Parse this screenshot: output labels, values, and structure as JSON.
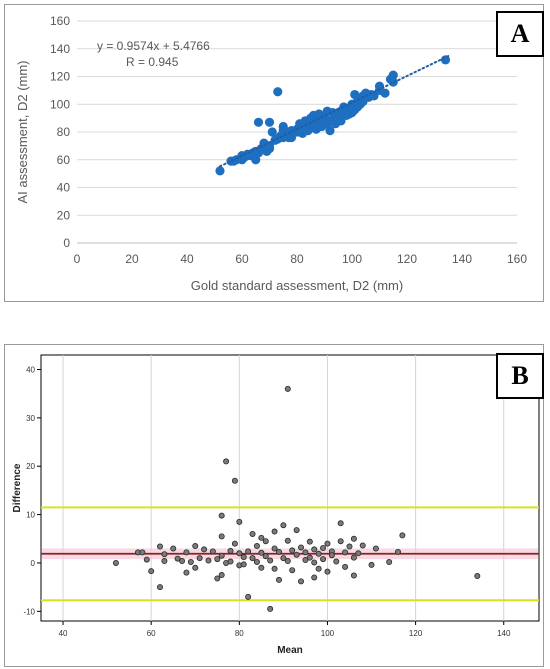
{
  "chart_data": [
    {
      "type": "scatter",
      "panel_label": "A",
      "xlabel": "Gold standard assessment, D2 (mm)",
      "ylabel": "AI assessment, D2 (mm)",
      "xlim": [
        0,
        160
      ],
      "ylim": [
        0,
        160
      ],
      "xticks": [
        "0",
        "20",
        "40",
        "60",
        "80",
        "100",
        "120",
        "140",
        "160"
      ],
      "yticks": [
        "0",
        "20",
        "40",
        "60",
        "80",
        "100",
        "120",
        "140",
        "160"
      ],
      "grid": "horizontal",
      "annotation": {
        "equation": "y = 0.9574x + 5.4766",
        "r": "R = 0.945"
      },
      "trendline": {
        "slope": 0.9574,
        "intercept": 5.4766,
        "x_range": [
          52,
          135
        ]
      },
      "colors": {
        "points": "#1f6fc0",
        "trendline": "#1f5fa8"
      },
      "points": [
        [
          52,
          52
        ],
        [
          56,
          59
        ],
        [
          57,
          59
        ],
        [
          58,
          60
        ],
        [
          60,
          60
        ],
        [
          60,
          63
        ],
        [
          61,
          62
        ],
        [
          62,
          64
        ],
        [
          63,
          63
        ],
        [
          64,
          65
        ],
        [
          65,
          60
        ],
        [
          65,
          66
        ],
        [
          66,
          65
        ],
        [
          66,
          87
        ],
        [
          67,
          68
        ],
        [
          68,
          70
        ],
        [
          68,
          72
        ],
        [
          69,
          66
        ],
        [
          70,
          70
        ],
        [
          70,
          68
        ],
        [
          70,
          87
        ],
        [
          71,
          80
        ],
        [
          72,
          74
        ],
        [
          73,
          109
        ],
        [
          73,
          75
        ],
        [
          74,
          77
        ],
        [
          75,
          76
        ],
        [
          75,
          81
        ],
        [
          75,
          84
        ],
        [
          76,
          78
        ],
        [
          77,
          76
        ],
        [
          77,
          80
        ],
        [
          78,
          76
        ],
        [
          78,
          79
        ],
        [
          78,
          81
        ],
        [
          79,
          80
        ],
        [
          80,
          82
        ],
        [
          80,
          80
        ],
        [
          81,
          84
        ],
        [
          81,
          86
        ],
        [
          82,
          82
        ],
        [
          82,
          79
        ],
        [
          83,
          88
        ],
        [
          83,
          84
        ],
        [
          84,
          87
        ],
        [
          84,
          81
        ],
        [
          85,
          83
        ],
        [
          85,
          90
        ],
        [
          86,
          85
        ],
        [
          86,
          92
        ],
        [
          87,
          88
        ],
        [
          87,
          82
        ],
        [
          88,
          86
        ],
        [
          88,
          93
        ],
        [
          89,
          89
        ],
        [
          89,
          84
        ],
        [
          90,
          91
        ],
        [
          90,
          88
        ],
        [
          91,
          95
        ],
        [
          91,
          86
        ],
        [
          92,
          88
        ],
        [
          92,
          81
        ],
        [
          93,
          94
        ],
        [
          93,
          89
        ],
        [
          94,
          92
        ],
        [
          94,
          86
        ],
        [
          95,
          94
        ],
        [
          95,
          90
        ],
        [
          96,
          95
        ],
        [
          96,
          88
        ],
        [
          97,
          93
        ],
        [
          97,
          98
        ],
        [
          98,
          92
        ],
        [
          98,
          96
        ],
        [
          99,
          97
        ],
        [
          99,
          93
        ],
        [
          100,
          100
        ],
        [
          100,
          94
        ],
        [
          101,
          96
        ],
        [
          101,
          107
        ],
        [
          102,
          102
        ],
        [
          102,
          98
        ],
        [
          103,
          104
        ],
        [
          103,
          100
        ],
        [
          104,
          106
        ],
        [
          104,
          102
        ],
        [
          105,
          108
        ],
        [
          106,
          105
        ],
        [
          107,
          107
        ],
        [
          108,
          106
        ],
        [
          110,
          110
        ],
        [
          110,
          113
        ],
        [
          112,
          108
        ],
        [
          114,
          118
        ],
        [
          115,
          121
        ],
        [
          115,
          116
        ],
        [
          134,
          132
        ]
      ]
    },
    {
      "type": "scatter",
      "panel_label": "B",
      "xlabel": "Mean",
      "ylabel": "Difference",
      "xlim": [
        35,
        148
      ],
      "ylim": [
        -12,
        43
      ],
      "xticks": [
        40,
        60,
        80,
        100,
        120,
        140
      ],
      "yticks": [
        -10,
        0,
        10,
        20,
        30,
        40
      ],
      "grid": "vertical",
      "reference_lines": {
        "mean": 1.9,
        "upper_loa": 11.5,
        "lower_loa": -7.7
      },
      "colors": {
        "points": "#7a7a7a",
        "point_edge": "#2a2a2a",
        "mean_line": "#8b2222",
        "mean_band": "#f2c9d6",
        "loa_lines": "#d9e021"
      },
      "points": [
        [
          52,
          0
        ],
        [
          57,
          2.2
        ],
        [
          58,
          2.2
        ],
        [
          59,
          0.7
        ],
        [
          60,
          -1.7
        ],
        [
          62,
          3.4
        ],
        [
          62,
          -5
        ],
        [
          63,
          0.4
        ],
        [
          63,
          1.8
        ],
        [
          65,
          3
        ],
        [
          66,
          0.9
        ],
        [
          67,
          0.4
        ],
        [
          68,
          2.2
        ],
        [
          68,
          -2
        ],
        [
          69,
          0.2
        ],
        [
          70,
          3.5
        ],
        [
          70,
          -1
        ],
        [
          71,
          1
        ],
        [
          72,
          2.8
        ],
        [
          73,
          0.5
        ],
        [
          74,
          2.4
        ],
        [
          75,
          0.8
        ],
        [
          75,
          -3.2
        ],
        [
          76,
          1.5
        ],
        [
          76,
          9.8
        ],
        [
          76,
          5.5
        ],
        [
          76,
          -2.5
        ],
        [
          77,
          21
        ],
        [
          77,
          0
        ],
        [
          78,
          2.5
        ],
        [
          78,
          0.3
        ],
        [
          79,
          17
        ],
        [
          79,
          4
        ],
        [
          80,
          8.5
        ],
        [
          80,
          2
        ],
        [
          80,
          -0.5
        ],
        [
          81,
          1.2
        ],
        [
          81,
          -0.3
        ],
        [
          82,
          -7
        ],
        [
          82,
          2.4
        ],
        [
          83,
          1
        ],
        [
          83,
          6
        ],
        [
          84,
          3.5
        ],
        [
          84,
          0.2
        ],
        [
          85,
          5.2
        ],
        [
          85,
          2.1
        ],
        [
          85,
          -1
        ],
        [
          86,
          4.5
        ],
        [
          86,
          1.4
        ],
        [
          87,
          -9.5
        ],
        [
          87,
          0.5
        ],
        [
          88,
          6.5
        ],
        [
          88,
          3
        ],
        [
          88,
          -1.2
        ],
        [
          89,
          2.3
        ],
        [
          89,
          -3.5
        ],
        [
          90,
          7.8
        ],
        [
          90,
          1
        ],
        [
          91,
          4.6
        ],
        [
          91,
          36
        ],
        [
          91,
          0.4
        ],
        [
          92,
          2.6
        ],
        [
          92,
          -1.5
        ],
        [
          93,
          6.8
        ],
        [
          93,
          1.7
        ],
        [
          94,
          3.2
        ],
        [
          94,
          -3.8
        ],
        [
          95,
          2.2
        ],
        [
          95,
          0.6
        ],
        [
          96,
          1.1
        ],
        [
          96,
          4.4
        ],
        [
          97,
          -3
        ],
        [
          97,
          2.8
        ],
        [
          97,
          0.1
        ],
        [
          98,
          1.9
        ],
        [
          98,
          -1.2
        ],
        [
          99,
          3.1
        ],
        [
          99,
          0.8
        ],
        [
          100,
          -1.8
        ],
        [
          100,
          4
        ],
        [
          101,
          2.4
        ],
        [
          101,
          1.6
        ],
        [
          102,
          0.3
        ],
        [
          103,
          8.2
        ],
        [
          103,
          4.5
        ],
        [
          104,
          2.2
        ],
        [
          104,
          -0.8
        ],
        [
          105,
          3.4
        ],
        [
          106,
          1.1
        ],
        [
          106,
          -2.6
        ],
        [
          106,
          5
        ],
        [
          107,
          2
        ],
        [
          108,
          3.6
        ],
        [
          110,
          -0.4
        ],
        [
          111,
          3
        ],
        [
          114,
          0.2
        ],
        [
          116,
          2.3
        ],
        [
          117,
          5.7
        ],
        [
          134,
          -2.7
        ]
      ]
    }
  ]
}
